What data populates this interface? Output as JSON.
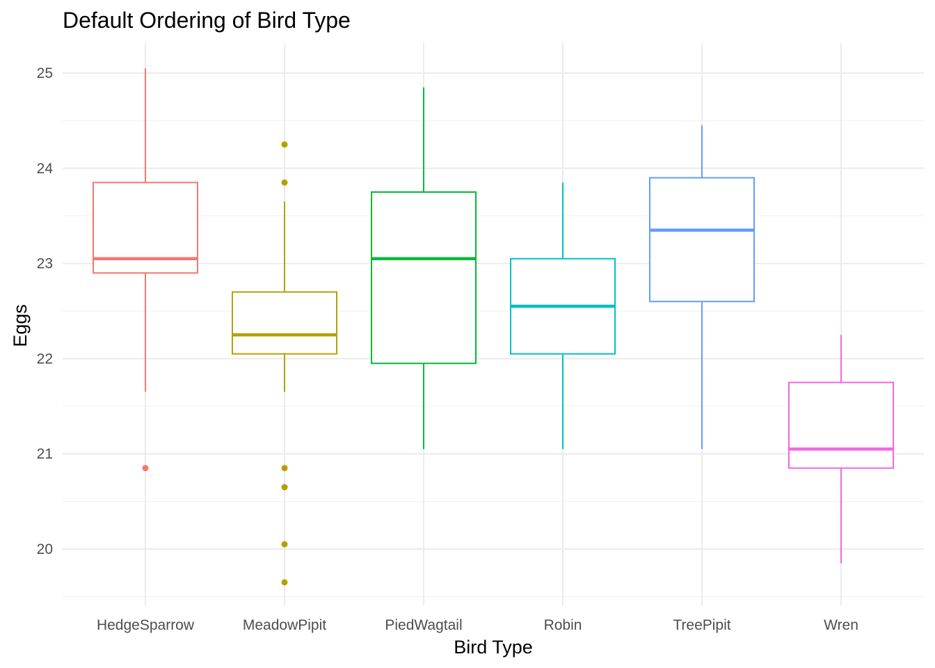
{
  "chart_data": {
    "type": "boxplot",
    "title": "Default Ordering of Bird Type",
    "xlabel": "Bird Type",
    "ylabel": "Eggs",
    "ylim": [
      19.45,
      25.3
    ],
    "yticks": [
      20,
      21,
      22,
      23,
      24,
      25
    ],
    "grid": true,
    "legend": "none",
    "categories": [
      "HedgeSparrow",
      "MeadowPipit",
      "PiedWagtail",
      "Robin",
      "TreePipit",
      "Wren"
    ],
    "boxes": [
      {
        "category": "HedgeSparrow",
        "color": "#F8766D",
        "whisker_low": 21.65,
        "q1": 22.9,
        "median": 23.05,
        "q3": 23.85,
        "whisker_high": 25.05,
        "outliers": [
          20.85
        ]
      },
      {
        "category": "MeadowPipit",
        "color": "#B79F00",
        "whisker_low": 21.65,
        "q1": 22.05,
        "median": 22.25,
        "q3": 22.7,
        "whisker_high": 23.65,
        "outliers": [
          24.25,
          23.85,
          20.85,
          20.65,
          20.05,
          19.65
        ]
      },
      {
        "category": "PiedWagtail",
        "color": "#00BA38",
        "whisker_low": 21.05,
        "q1": 21.95,
        "median": 23.05,
        "q3": 23.75,
        "whisker_high": 24.85,
        "outliers": []
      },
      {
        "category": "Robin",
        "color": "#00BFC4",
        "whisker_low": 21.05,
        "q1": 22.05,
        "median": 22.55,
        "q3": 23.05,
        "whisker_high": 23.85,
        "outliers": []
      },
      {
        "category": "TreePipit",
        "color": "#619CFF",
        "whisker_low": 21.05,
        "q1": 22.6,
        "median": 23.35,
        "q3": 23.9,
        "whisker_high": 24.45,
        "outliers": []
      },
      {
        "category": "Wren",
        "color": "#F564E3",
        "whisker_low": 19.85,
        "q1": 20.85,
        "median": 21.05,
        "q3": 21.75,
        "whisker_high": 22.25,
        "outliers": []
      }
    ]
  }
}
